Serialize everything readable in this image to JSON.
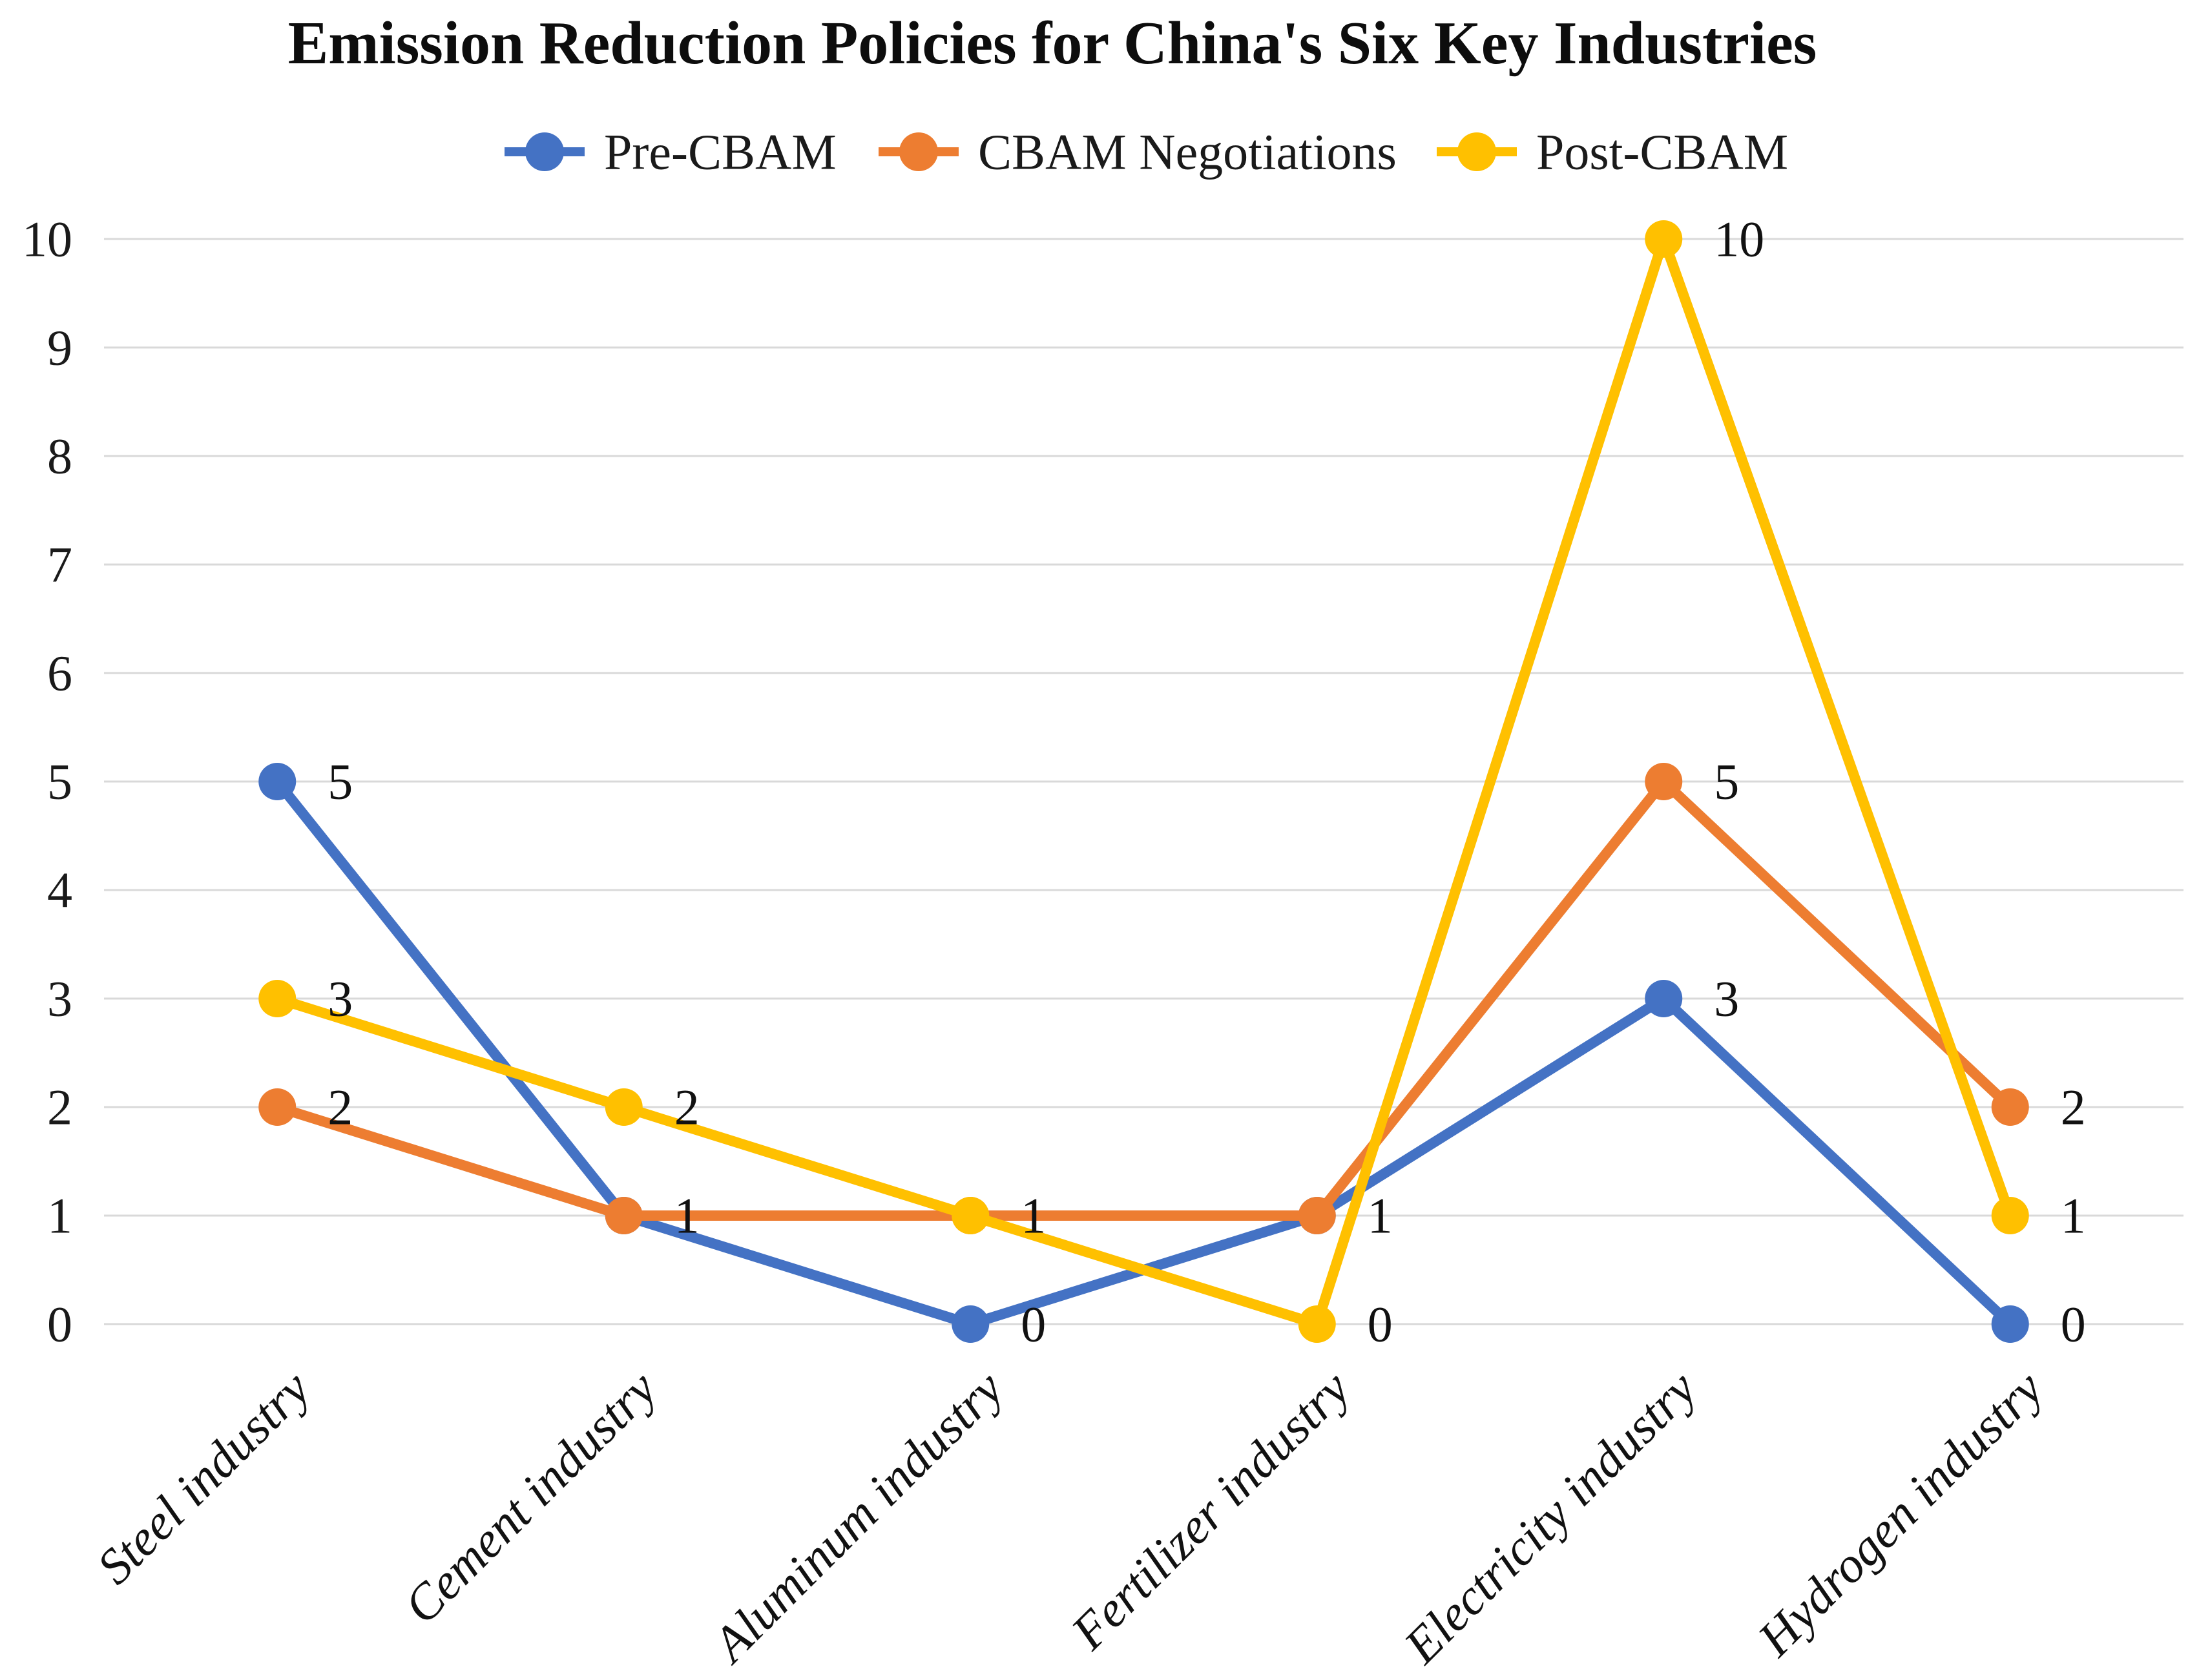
{
  "page": {
    "background": "#ffffff",
    "text_color": "#1a1a1a"
  },
  "chart_data": {
    "type": "line",
    "title": "Emission Reduction Policies for China's Six Key Industries",
    "categories": [
      "Steel industry",
      "Cement industry",
      "Aluminum industry",
      "Fertilizer industry",
      "Electricity industry",
      "Hydrogen industry"
    ],
    "series": [
      {
        "name": "Pre-CBAM",
        "color": "#4472C4",
        "values": [
          5,
          1,
          0,
          1,
          3,
          0
        ]
      },
      {
        "name": "CBAM Negotiations",
        "color": "#ED7D31",
        "values": [
          2,
          1,
          1,
          1,
          5,
          2
        ]
      },
      {
        "name": "Post-CBAM",
        "color": "#FFC000",
        "values": [
          3,
          2,
          1,
          0,
          10,
          1
        ]
      }
    ],
    "y_axis": {
      "min": 0,
      "max": 10,
      "tick_interval": 1,
      "ticks": [
        "0",
        "1",
        "2",
        "3",
        "4",
        "5",
        "6",
        "7",
        "8",
        "9",
        "10"
      ]
    },
    "x_axis": {
      "label_rotation_deg": -45,
      "label_style": "italic"
    },
    "legend_position": "top",
    "grid": true,
    "gridline_color": "#d9d9d9",
    "data_labels": true,
    "data_label_position": "right",
    "marker": "circle"
  }
}
